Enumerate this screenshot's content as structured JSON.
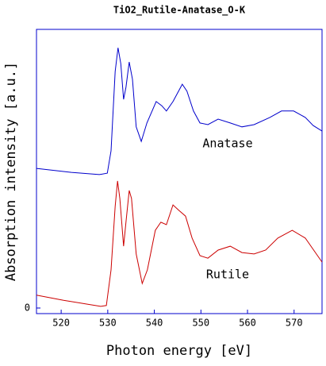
{
  "chart_data": {
    "type": "line",
    "title": "TiO2_Rutile-Anatase_O-K",
    "x_label": "Photon energy [eV]",
    "y_label": "Absorption intensity [a.u.]",
    "xlim": [
      514.7,
      576
    ],
    "xticks": [
      520,
      530,
      540,
      550,
      560,
      570
    ],
    "ylim": [
      -0.2,
      10
    ],
    "yticks": [
      0
    ],
    "series": [
      {
        "name": "Anatase",
        "color": "#0000cc",
        "x": [
          514.7,
          522.2,
          528.2,
          529.9,
          530.7,
          531.6,
          532.2,
          532.8,
          533.4,
          533.9,
          534.6,
          535.3,
          536.1,
          537.2,
          538.4,
          540.4,
          541.6,
          542.6,
          544.0,
          546.0,
          547.0,
          548.4,
          549.8,
          551.5,
          553.7,
          556.3,
          558.8,
          561.4,
          564.8,
          567.3,
          569.9,
          572.4,
          574.1,
          576.0
        ],
        "values": [
          5.01,
          4.87,
          4.79,
          4.84,
          5.64,
          8.49,
          9.34,
          8.77,
          7.49,
          7.92,
          8.83,
          8.21,
          6.5,
          5.98,
          6.64,
          7.41,
          7.26,
          7.07,
          7.41,
          8.03,
          7.78,
          7.07,
          6.64,
          6.58,
          6.78,
          6.64,
          6.5,
          6.58,
          6.84,
          7.07,
          7.07,
          6.84,
          6.55,
          6.35
        ]
      },
      {
        "name": "Rutile",
        "color": "#cc0000",
        "x": [
          514.7,
          520.5,
          525.6,
          528.5,
          529.7,
          530.7,
          531.6,
          532.1,
          532.6,
          533.4,
          533.9,
          534.6,
          535.1,
          536.1,
          537.4,
          538.5,
          540.2,
          541.4,
          542.6,
          544.0,
          545.3,
          546.7,
          548.1,
          549.8,
          551.5,
          553.7,
          556.3,
          558.8,
          561.4,
          563.9,
          566.5,
          569.6,
          572.4,
          576.0
        ],
        "values": [
          0.46,
          0.28,
          0.14,
          0.06,
          0.09,
          1.37,
          3.65,
          4.56,
          3.93,
          2.22,
          3.08,
          4.22,
          3.93,
          1.94,
          0.88,
          1.37,
          2.79,
          3.08,
          2.99,
          3.7,
          3.5,
          3.3,
          2.51,
          1.88,
          1.79,
          2.08,
          2.22,
          1.99,
          1.94,
          2.08,
          2.51,
          2.79,
          2.51,
          1.65
        ]
      }
    ]
  }
}
